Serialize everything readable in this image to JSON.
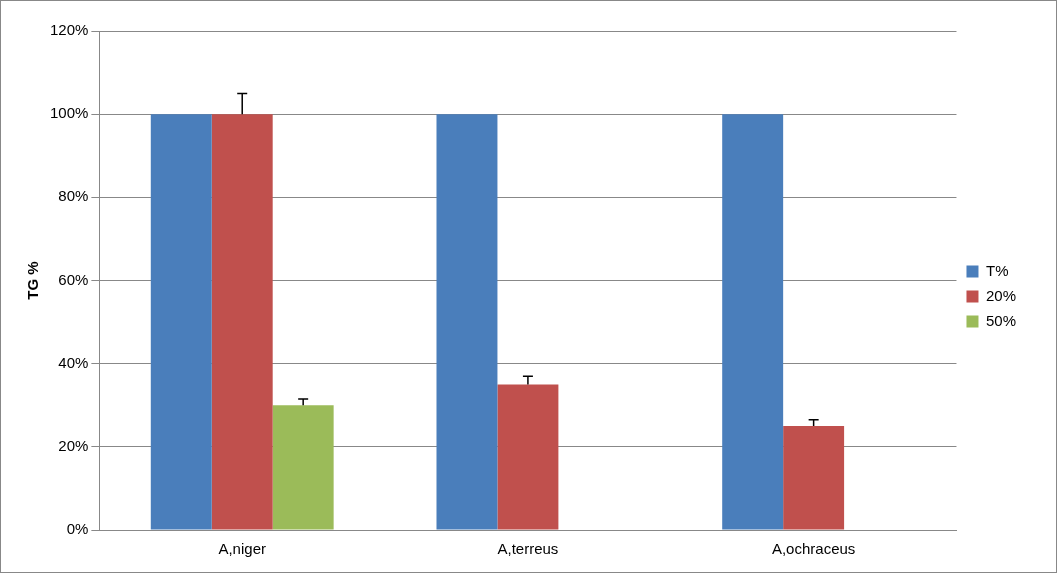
{
  "chart_data": {
    "type": "bar",
    "ylabel": "TG %",
    "categories": [
      "A,niger",
      "A,terreus",
      "A,ochraceus"
    ],
    "series": [
      {
        "name": "T%",
        "color": "#4a7ebb",
        "values": [
          100,
          100,
          100
        ]
      },
      {
        "name": "20%",
        "color": "#c0504d",
        "values": [
          100,
          35,
          25
        ],
        "errors": [
          [
            100,
            105
          ],
          [
            35,
            37
          ],
          [
            25,
            26.5
          ]
        ]
      },
      {
        "name": "50%",
        "color": "#9bbb59",
        "values": [
          30,
          null,
          null
        ],
        "errors": [
          [
            30,
            31.5
          ],
          null,
          null
        ]
      }
    ],
    "ylim": [
      0,
      120
    ],
    "yticks": [
      {
        "value": 0,
        "label": "0%"
      },
      {
        "value": 20,
        "label": "20%"
      },
      {
        "value": 40,
        "label": "40%"
      },
      {
        "value": 60,
        "label": "60%"
      },
      {
        "value": 80,
        "label": "80%"
      },
      {
        "value": 100,
        "label": "100%"
      },
      {
        "value": 120,
        "label": "120%"
      }
    ],
    "grid": "y",
    "legend": "right"
  }
}
